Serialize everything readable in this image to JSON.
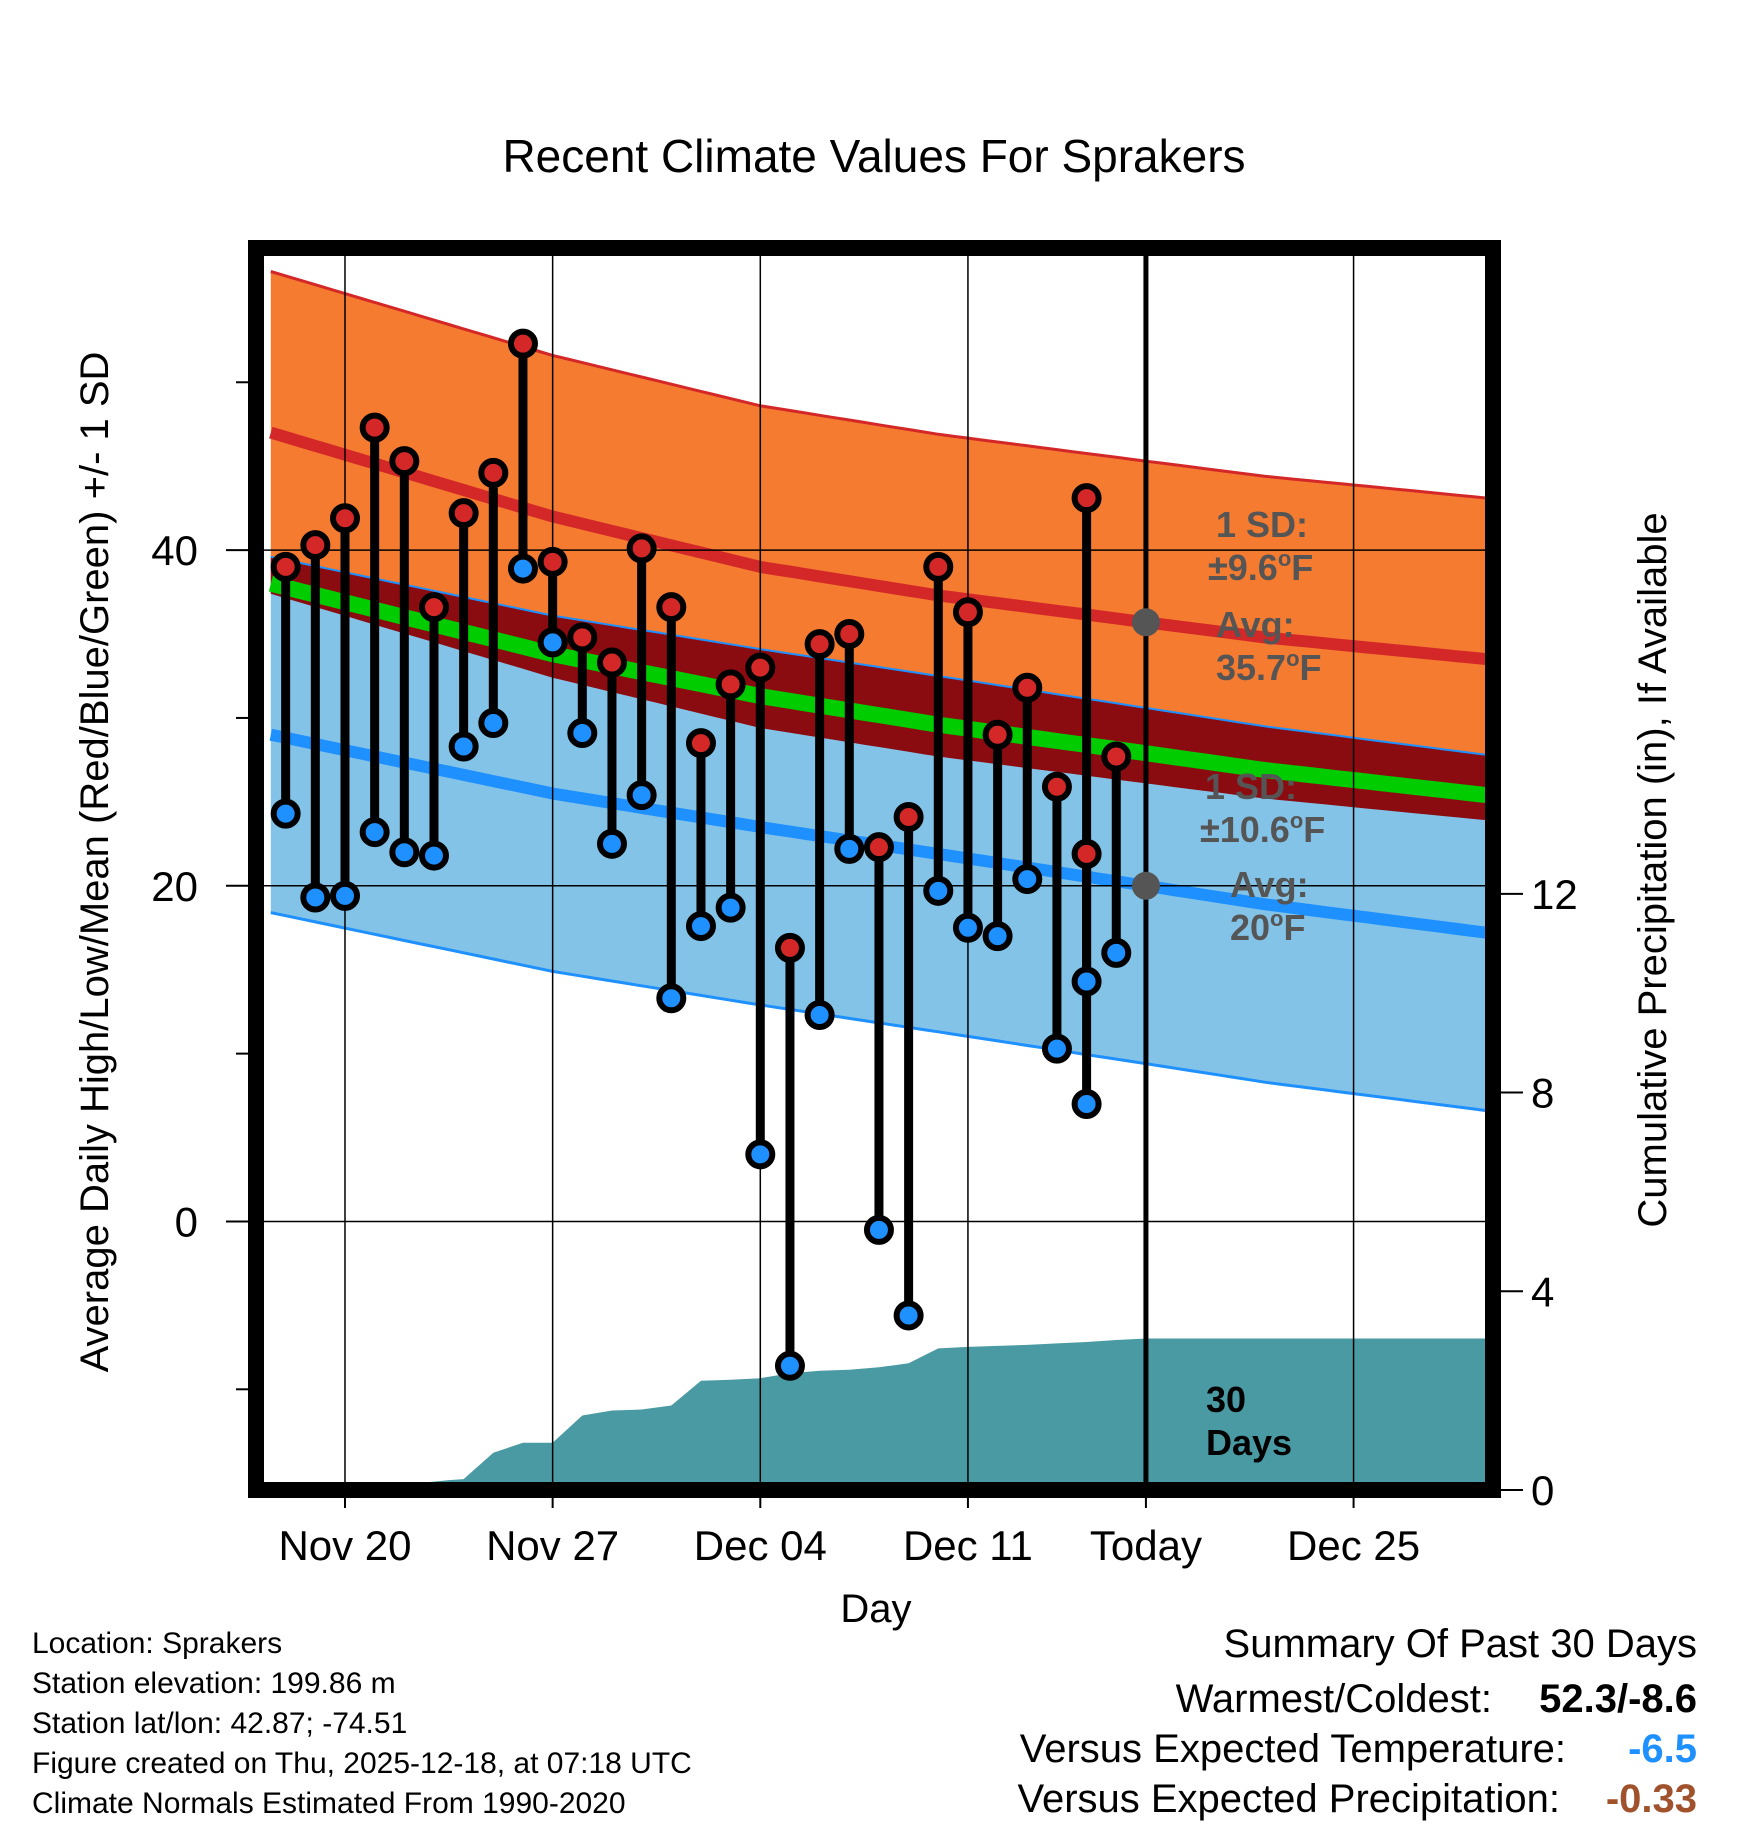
{
  "colors": {
    "high_band": "#f47b30",
    "high_line": "#d42828",
    "low_band": "#83c3e8",
    "low_line": "#1e90ff",
    "mean_band": "#8b0c10",
    "mean_line": "#00cc00",
    "precip_fill": "#4a9aa3",
    "high_marker": "#d42828",
    "low_marker": "#1e90ff",
    "temp_anomaly": "#1e90ff",
    "precip_anomaly": "#a0522d"
  },
  "chart_data": {
    "type": "line",
    "title": "Recent Climate Values For Sprakers",
    "xlabel": "Day",
    "ylabel_left": "Average Daily High/Low/Mean (Red/Blue/Green) +/- 1 SD",
    "ylabel_right": "Cumulative Precipitation (in), If Available",
    "x_range_days": [
      -23,
      18.7
    ],
    "y_range_left": [
      -16,
      58
    ],
    "y_range_right": [
      0,
      25
    ],
    "x_tick_labels": [
      {
        "day": -20,
        "label": "Nov 20"
      },
      {
        "day": -13,
        "label": "Nov 27"
      },
      {
        "day": -6,
        "label": "Dec 04"
      },
      {
        "day": 1,
        "label": "Dec 11"
      },
      {
        "day": 7,
        "label": "Today"
      },
      {
        "day": 14,
        "label": "Dec 25"
      }
    ],
    "today_day": 7,
    "y_ticks_left": [
      0,
      20,
      40
    ],
    "y_minor_ticks_left": [
      -10,
      10,
      30,
      50
    ],
    "y_ticks_right": [
      0,
      4,
      8,
      12
    ],
    "normals": {
      "days": [
        -22.5,
        -13,
        -6,
        0,
        7,
        11,
        18.5
      ],
      "high_avg": [
        47,
        42.0,
        39.0,
        37.3,
        35.7,
        34.8,
        33.5
      ],
      "high_sd": 9.6,
      "low_avg": [
        29,
        25.5,
        23.5,
        21.9,
        20.0,
        18.9,
        17.2
      ],
      "low_sd": 10.6,
      "mean_avg": [
        38.0,
        33.8,
        31.3,
        29.6,
        27.9,
        26.9,
        25.4
      ]
    },
    "daily": {
      "days": [
        -22,
        -21,
        -20,
        -19,
        -18,
        -17,
        -16,
        -15,
        -14,
        -13,
        -12,
        -11,
        -10,
        -9,
        -8,
        -7,
        -6,
        -5,
        -4,
        -3,
        -2,
        -1,
        0,
        1,
        2,
        3,
        4,
        5,
        6
      ],
      "highs": [
        39,
        40.3,
        41.9,
        47.3,
        45.3,
        36.6,
        42.2,
        44.6,
        52.3,
        39.3,
        34.8,
        33.3,
        40.1,
        36.6,
        28.5,
        32.0,
        33.0,
        16.3,
        34.4,
        35.0,
        22.3,
        24.1,
        39.0,
        36.3,
        29.0,
        31.8,
        25.9,
        21.9,
        27.7
      ],
      "lows": [
        24.3,
        19.3,
        19.4,
        23.2,
        22.0,
        21.8,
        28.3,
        29.7,
        38.9,
        34.5,
        29.1,
        22.5,
        25.4,
        13.3,
        17.6,
        18.7,
        4.0,
        -8.6,
        12.3,
        22.2,
        -0.5,
        -5.6,
        19.7,
        17.5,
        17.0,
        20.4,
        10.3,
        7.0,
        16.0
      ],
      "highs_tail": [
        {
          "day": 5,
          "high": 43.1,
          "low": 14.3
        }
      ]
    },
    "precip_cumulative": {
      "days": [
        -22.5,
        -19,
        -18,
        -17.3,
        -16.5,
        -16,
        -15,
        -14,
        -13,
        -12,
        -11,
        -10,
        -9,
        -8,
        -7,
        -6,
        -5,
        -4,
        -3,
        -2,
        -1,
        0,
        1,
        2,
        3,
        4,
        5,
        6,
        7,
        18.5
      ],
      "values": [
        0,
        0,
        0,
        0.15,
        0.2,
        0.22,
        0.75,
        0.95,
        0.95,
        1.5,
        1.6,
        1.62,
        1.7,
        2.2,
        2.22,
        2.25,
        2.35,
        2.4,
        2.42,
        2.47,
        2.55,
        2.85,
        2.88,
        2.9,
        2.92,
        2.95,
        2.98,
        3.02,
        3.05,
        3.05
      ]
    },
    "annotations": {
      "high_sd_label": "1 SD:",
      "high_sd_value": "±9.6",
      "high_sd_unit": "F",
      "high_avg_label": "Avg:",
      "high_avg_value": "35.7",
      "high_avg_unit": "F",
      "low_sd_label": "1 SD:",
      "low_sd_value": "±10.6",
      "low_sd_unit": "F",
      "low_avg_label": "Avg:",
      "low_avg_value": "20",
      "low_avg_unit": "F",
      "degree_mark": "o",
      "days_number": "30",
      "days_word": "Days"
    }
  },
  "footer": {
    "location": "Location: Sprakers",
    "elevation": "Station elevation: 199.86 m",
    "latlon": "Station lat/lon: 42.87; -74.51",
    "created": "Figure created on Thu, 2025-12-18, at 07:18 UTC",
    "normals": "Climate Normals Estimated From 1990-2020"
  },
  "summary": {
    "title": "Summary Of Past 30 Days",
    "warm_cold_label": "Warmest/Coldest:",
    "warm_cold_value": "52.3/-8.6",
    "temp_label": "Versus Expected Temperature:",
    "temp_value": "-6.5",
    "precip_label": "Versus Expected Precipitation:",
    "precip_value": "-0.33"
  }
}
